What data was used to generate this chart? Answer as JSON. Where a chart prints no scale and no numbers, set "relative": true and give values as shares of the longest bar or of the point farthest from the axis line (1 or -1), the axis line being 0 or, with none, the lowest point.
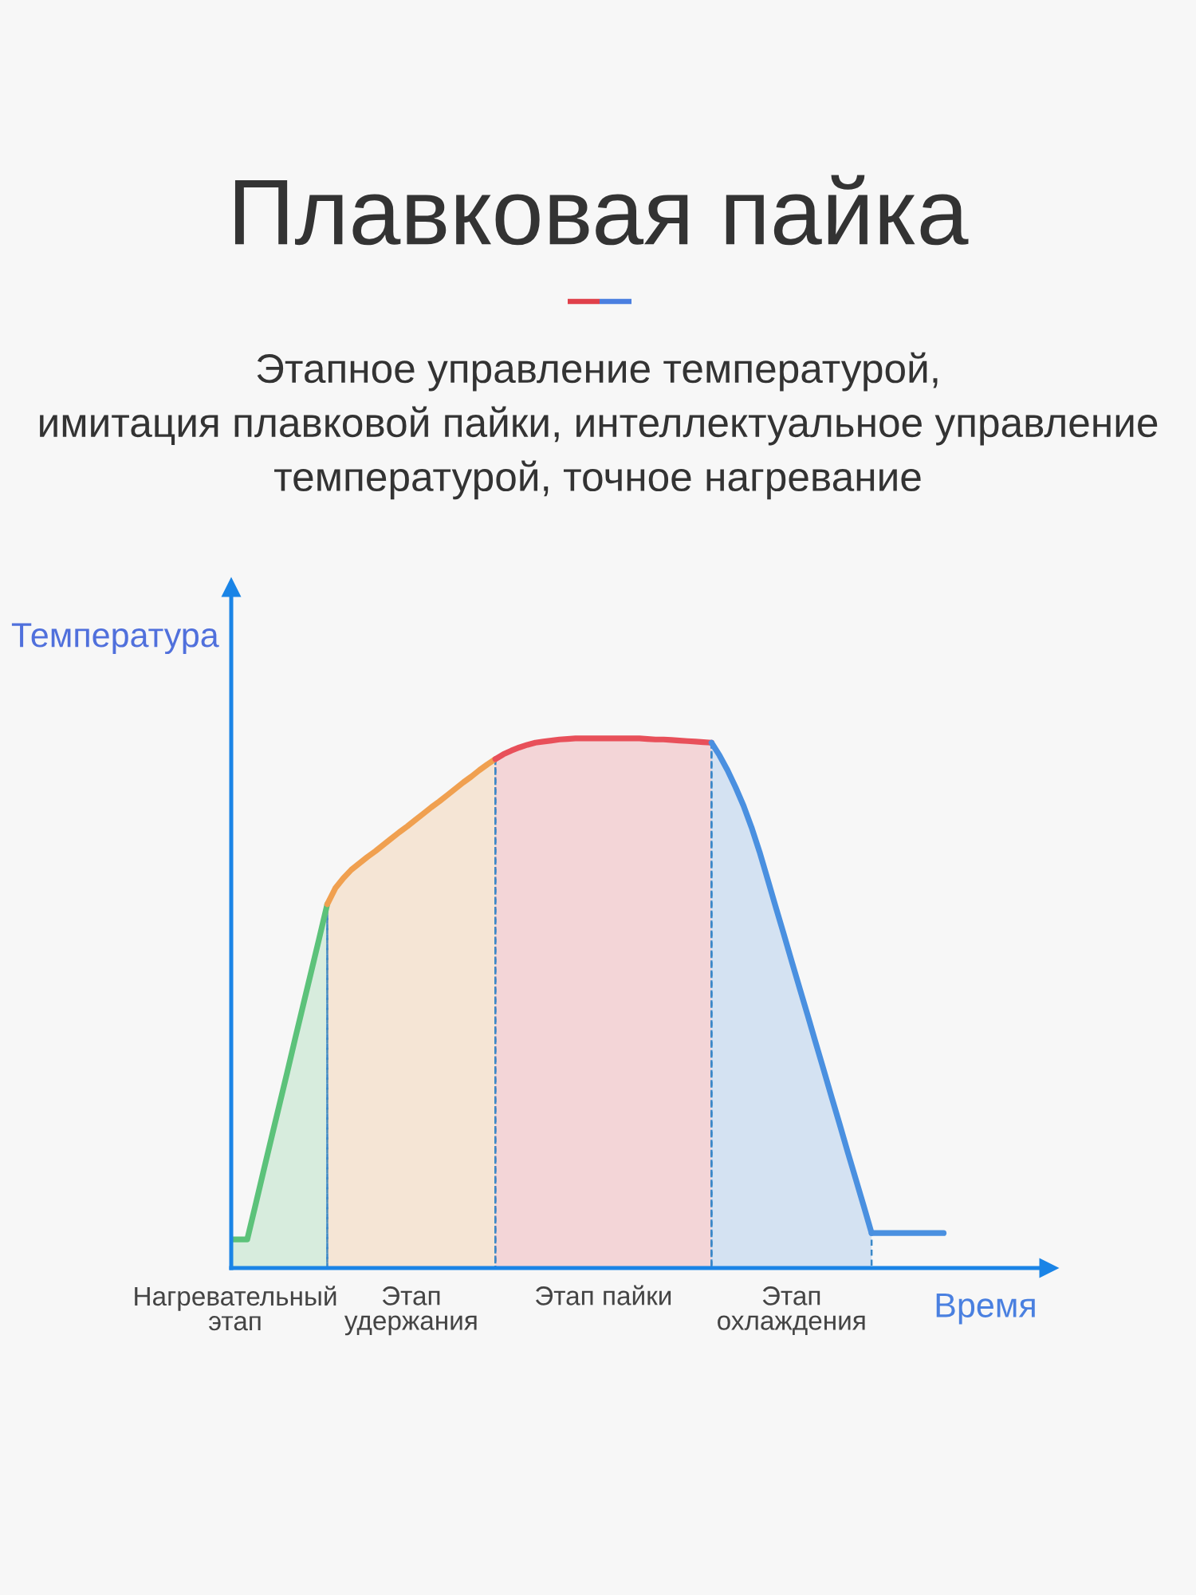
{
  "chart_data": {
    "type": "area",
    "title": "Плавковая пайка",
    "subtitle": "Этапное управление температурой,\nимитация плавковой пайки, интеллектуальное управление\nтемпературой, точное нагревание",
    "xlabel": "Время",
    "ylabel": "Температура",
    "relative": true,
    "categories": [
      null,
      null,
      null,
      null,
      null,
      null,
      null,
      null,
      null,
      null,
      null,
      null,
      null,
      null,
      null,
      null,
      null,
      null,
      null,
      null,
      null,
      null,
      null,
      null,
      null,
      null,
      null,
      null,
      null,
      null,
      null,
      null,
      null,
      null,
      null,
      null,
      null,
      null,
      null,
      null,
      null,
      null,
      null,
      null,
      null,
      null,
      null,
      null,
      null,
      null,
      null,
      null,
      null,
      null,
      null,
      null,
      null,
      null,
      null,
      null,
      null,
      null,
      null,
      null,
      null,
      null,
      null,
      null,
      null,
      null,
      null,
      null,
      null,
      null,
      null,
      null,
      null,
      null,
      null,
      null,
      null,
      null,
      null,
      null,
      null,
      null,
      null,
      null,
      null,
      null
    ],
    "series": [
      {
        "name": "Нагревательный\nэтап",
        "color": "#5cc27a",
        "values": [
          0.054,
          0.054,
          0.054,
          0.117,
          0.181,
          0.244,
          0.307,
          0.37,
          0.434,
          0.497,
          0.56,
          0.623,
          0.687,
          null,
          null,
          null,
          null,
          null,
          null,
          null,
          null,
          null,
          null,
          null,
          null,
          null,
          null,
          null,
          null,
          null,
          null,
          null,
          null,
          null,
          null,
          null,
          null,
          null,
          null,
          null,
          null,
          null,
          null,
          null,
          null,
          null,
          null,
          null,
          null,
          null,
          null,
          null,
          null,
          null,
          null,
          null,
          null,
          null,
          null,
          null,
          null,
          null,
          null,
          null,
          null,
          null,
          null,
          null,
          null,
          null,
          null,
          null,
          null,
          null,
          null,
          null,
          null,
          null,
          null,
          null,
          null,
          null,
          null,
          null,
          null,
          null,
          null,
          null,
          null,
          null
        ]
      },
      {
        "name": "Этап\nудержания",
        "color": "#f0a050",
        "values": [
          null,
          null,
          null,
          null,
          null,
          null,
          null,
          null,
          null,
          null,
          null,
          null,
          0.687,
          0.717,
          0.736,
          0.752,
          0.764,
          0.776,
          0.787,
          0.799,
          0.811,
          0.823,
          0.834,
          0.846,
          0.858,
          0.87,
          0.881,
          0.893,
          0.905,
          0.917,
          0.928,
          0.94,
          0.951,
          0.961,
          null,
          null,
          null,
          null,
          null,
          null,
          null,
          null,
          null,
          null,
          null,
          null,
          null,
          null,
          null,
          null,
          null,
          null,
          null,
          null,
          null,
          null,
          null,
          null,
          null,
          null,
          null,
          null,
          null,
          null,
          null,
          null,
          null,
          null,
          null,
          null,
          null,
          null,
          null,
          null,
          null,
          null,
          null,
          null,
          null,
          null,
          null,
          null,
          null,
          null,
          null,
          null,
          null,
          null,
          null,
          null
        ]
      },
      {
        "name": "Этап пайки",
        "color": "#e8505a",
        "values": [
          null,
          null,
          null,
          null,
          null,
          null,
          null,
          null,
          null,
          null,
          null,
          null,
          null,
          null,
          null,
          null,
          null,
          null,
          null,
          null,
          null,
          null,
          null,
          null,
          null,
          null,
          null,
          null,
          null,
          null,
          null,
          null,
          null,
          0.961,
          0.97,
          0.977,
          0.983,
          0.988,
          0.992,
          0.994,
          0.996,
          0.998,
          0.999,
          1.0,
          1.0,
          1.0,
          1.0,
          1.0,
          1.0,
          1.0,
          1.0,
          1.0,
          0.999,
          0.998,
          0.998,
          0.997,
          0.996,
          0.995,
          0.994,
          0.993,
          0.992,
          null,
          null,
          null,
          null,
          null,
          null,
          null,
          null,
          null,
          null,
          null,
          null,
          null,
          null,
          null,
          null,
          null,
          null,
          null,
          null,
          null,
          null,
          null,
          null,
          null,
          null,
          null,
          null,
          null
        ]
      },
      {
        "name": "Этап\nохлаждения",
        "color": "#4a90e0",
        "values": [
          null,
          null,
          null,
          null,
          null,
          null,
          null,
          null,
          null,
          null,
          null,
          null,
          null,
          null,
          null,
          null,
          null,
          null,
          null,
          null,
          null,
          null,
          null,
          null,
          null,
          null,
          null,
          null,
          null,
          null,
          null,
          null,
          null,
          null,
          null,
          null,
          null,
          null,
          null,
          null,
          null,
          null,
          null,
          null,
          null,
          null,
          null,
          null,
          null,
          null,
          null,
          null,
          null,
          null,
          null,
          null,
          null,
          null,
          null,
          null,
          0.992,
          0.968,
          0.94,
          0.908,
          0.873,
          0.832,
          0.786,
          0.735,
          0.683,
          0.632,
          0.58,
          0.529,
          0.478,
          0.426,
          0.375,
          0.323,
          0.272,
          0.22,
          0.169,
          0.118,
          0.066,
          null,
          null,
          null,
          null,
          null,
          null,
          null,
          null,
          null
        ]
      },
      {
        "type": "line",
        "color": "#4a90e0",
        "values": [
          null,
          null,
          null,
          null,
          null,
          null,
          null,
          null,
          null,
          null,
          null,
          null,
          null,
          null,
          null,
          null,
          null,
          null,
          null,
          null,
          null,
          null,
          null,
          null,
          null,
          null,
          null,
          null,
          null,
          null,
          null,
          null,
          null,
          null,
          null,
          null,
          null,
          null,
          null,
          null,
          null,
          null,
          null,
          null,
          null,
          null,
          null,
          null,
          null,
          null,
          null,
          null,
          null,
          null,
          null,
          null,
          null,
          null,
          null,
          null,
          null,
          null,
          null,
          null,
          null,
          null,
          null,
          null,
          null,
          null,
          null,
          null,
          null,
          null,
          null,
          null,
          null,
          null,
          null,
          null,
          0.066,
          0.066,
          0.066,
          0.066,
          0.066,
          0.066,
          0.066,
          0.066,
          0.066,
          0.066
        ]
      }
    ]
  }
}
